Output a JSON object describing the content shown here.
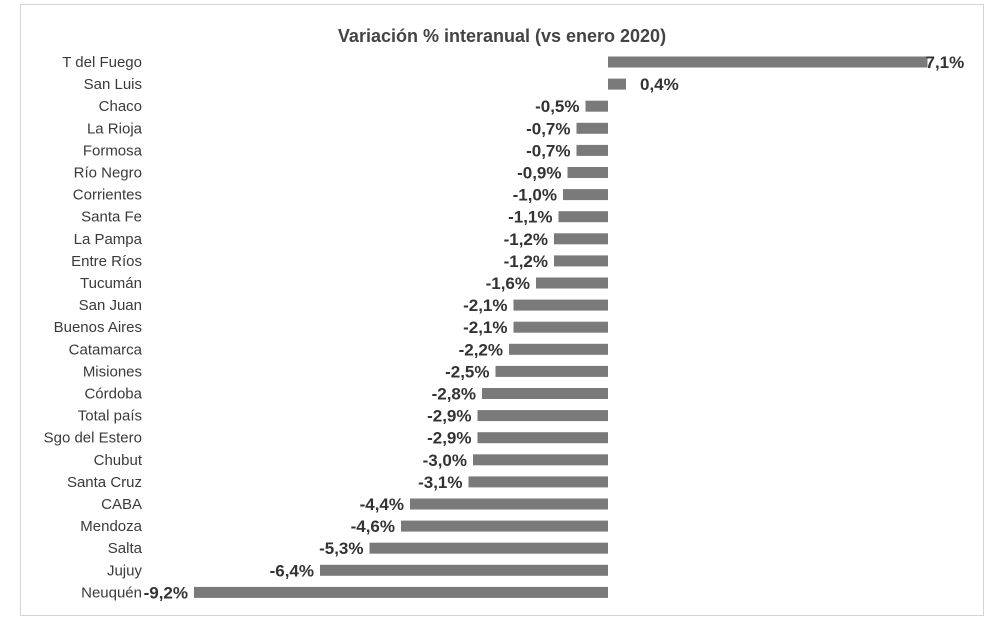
{
  "chart_data": {
    "type": "bar",
    "orientation": "horizontal",
    "title": "Variación % interanual (vs enero 2020)",
    "xlabel": "",
    "ylabel": "",
    "grid": false,
    "bar_color": "#7a7a7a",
    "categories": [
      "T del Fuego",
      "San Luis",
      "Chaco",
      "La Rioja",
      "Formosa",
      "Río Negro",
      "Corrientes",
      "Santa Fe",
      "La Pampa",
      "Entre Ríos",
      "Tucumán",
      "San Juan",
      "Buenos Aires",
      "Catamarca",
      "Misiones",
      "Córdoba",
      "Total país",
      "Sgo del Estero",
      "Chubut",
      "Santa Cruz",
      "CABA",
      "Mendoza",
      "Salta",
      "Jujuy",
      "Neuquén"
    ],
    "values": [
      7.1,
      0.4,
      -0.5,
      -0.7,
      -0.7,
      -0.9,
      -1.0,
      -1.1,
      -1.2,
      -1.2,
      -1.6,
      -2.1,
      -2.1,
      -2.2,
      -2.5,
      -2.8,
      -2.9,
      -2.9,
      -3.0,
      -3.1,
      -4.4,
      -4.6,
      -5.3,
      -6.4,
      -9.2
    ],
    "value_labels": [
      "7,1%",
      "0,4%",
      "-0,5%",
      "-0,7%",
      "-0,7%",
      "-0,9%",
      "-1,0%",
      "-1,1%",
      "-1,2%",
      "-1,2%",
      "-1,6%",
      "-2,1%",
      "-2,1%",
      "-2,2%",
      "-2,5%",
      "-2,8%",
      "-2,9%",
      "-2,9%",
      "-3,0%",
      "-3,1%",
      "-4,4%",
      "-4,6%",
      "-5,3%",
      "-6,4%",
      "-9,2%"
    ],
    "xlim": [
      -9.2,
      7.1
    ]
  }
}
